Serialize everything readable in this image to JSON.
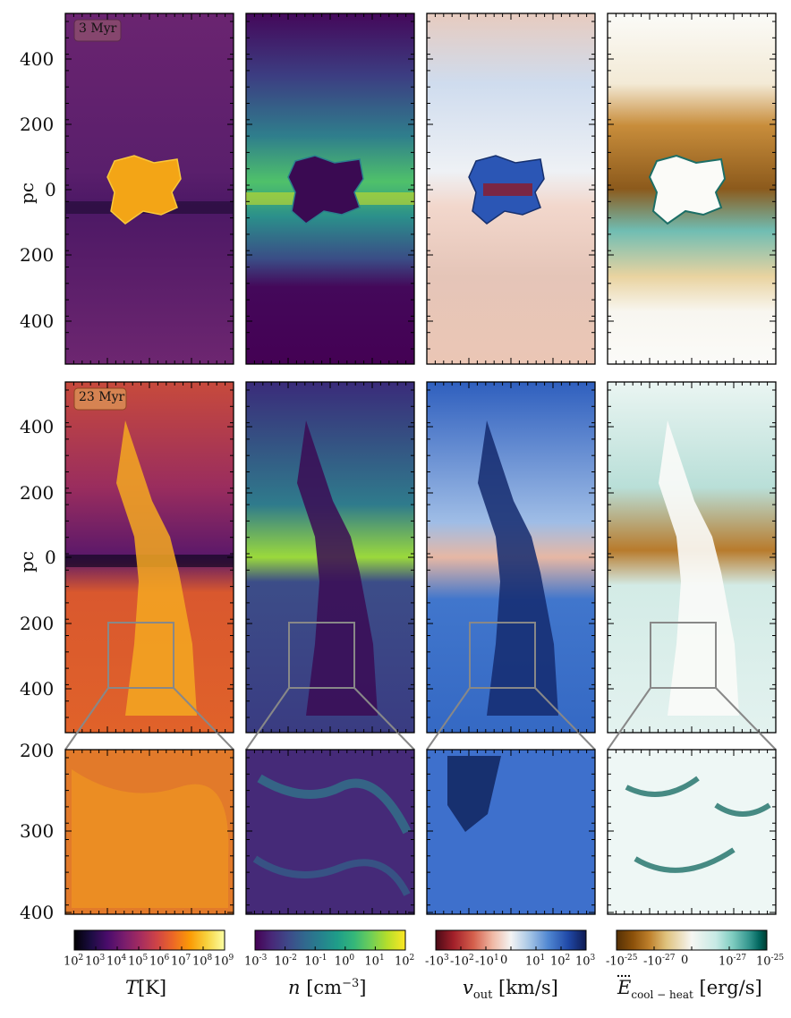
{
  "chart_data": {
    "type": "heatmap",
    "description_rows": [
      "3 Myr",
      "23 Myr",
      "zoom"
    ],
    "rows": [
      {
        "time_label": "3 Myr",
        "y_axis_label": "pc",
        "y_ticks": [
          "400",
          "200",
          "0",
          "200",
          "400"
        ]
      },
      {
        "time_label": "23 Myr",
        "y_axis_label": "pc",
        "y_ticks": [
          "400",
          "200",
          "0",
          "200",
          "400"
        ]
      },
      {
        "time_label": "",
        "y_axis_label": "",
        "y_ticks": [
          "200",
          "300",
          "400"
        ]
      }
    ],
    "columns": [
      {
        "quantity": "T",
        "colorbar_label": "T [K]",
        "colormap": "inferno",
        "ticks": [
          "10^2",
          "10^3",
          "10^4",
          "10^5",
          "10^6",
          "10^7",
          "10^8",
          "10^9"
        ],
        "stops": [
          "#000004",
          "#1b0c41",
          "#4a0c6b",
          "#781c6d",
          "#a52c60",
          "#cf4446",
          "#ed6925",
          "#fb9b06",
          "#f7d13d",
          "#fcffa4"
        ]
      },
      {
        "quantity": "n",
        "colorbar_label": "n [cm^-3]",
        "colormap": "viridis",
        "ticks": [
          "10^-3",
          "10^-2",
          "10^-1",
          "10^0",
          "10^1",
          "10^2"
        ],
        "stops": [
          "#440154",
          "#482878",
          "#3e4989",
          "#31688e",
          "#26828e",
          "#1f9e89",
          "#35b779",
          "#6ece58",
          "#b5de2b",
          "#fde725"
        ]
      },
      {
        "quantity": "v_out",
        "colorbar_label": "v_out [km/s]",
        "colormap": "diverging red-white-blue",
        "ticks": [
          "-10^3",
          "-10^2",
          "-10^1",
          "0",
          "10^1",
          "10^2",
          "10^3"
        ],
        "stops": [
          "#4a0a16",
          "#a3202a",
          "#d45f4c",
          "#f0b9a5",
          "#f4f4f4",
          "#a8c7e6",
          "#4f86d1",
          "#2049a8",
          "#0e1a52"
        ]
      },
      {
        "quantity": "E_cool-heat",
        "colorbar_label": "E_cool-heat [erg/s]",
        "colormap": "diverging brown-white-teal",
        "ticks": [
          "-10^-25",
          "-10^-27",
          "0",
          "10^-27",
          "10^-25"
        ],
        "stops": [
          "#543005",
          "#8c510a",
          "#bf812d",
          "#dfc27d",
          "#f6f6f2",
          "#c7eae5",
          "#80cdc1",
          "#35978f",
          "#01665e",
          "#003c30"
        ]
      }
    ],
    "zoom_region_pc": {
      "y_from": 200,
      "y_to": 400
    },
    "grid": false
  },
  "labels": {
    "time_top": "3 Myr",
    "time_mid": "23 Myr",
    "ylabel_top": "pc",
    "ylabel_mid": "pc",
    "ticks_top": [
      "400",
      "200",
      "0",
      "200",
      "400"
    ],
    "ticks_mid": [
      "400",
      "200",
      "0",
      "200",
      "400"
    ],
    "ticks_zoom": [
      "200",
      "300",
      "400"
    ],
    "cb_T_ticks": [
      "10",
      "10",
      "10",
      "10",
      "10",
      "10",
      "10",
      "10"
    ],
    "cb_T_exps": [
      "2",
      "3",
      "4",
      "5",
      "6",
      "7",
      "8",
      "9"
    ],
    "cb_T_title": "T",
    "cb_T_unit": "[K]",
    "cb_n_title": "n",
    "cb_n_unit": "[cm",
    "cb_n_unit_exp": "−3",
    "cb_n_unit_end": "]",
    "cb_v_title": "v",
    "cb_v_sub": "out",
    "cb_v_unit": "[km/s]",
    "cb_e_title": "E",
    "cb_e_sub": "cool − heat",
    "cb_e_unit": "[erg/s]"
  }
}
